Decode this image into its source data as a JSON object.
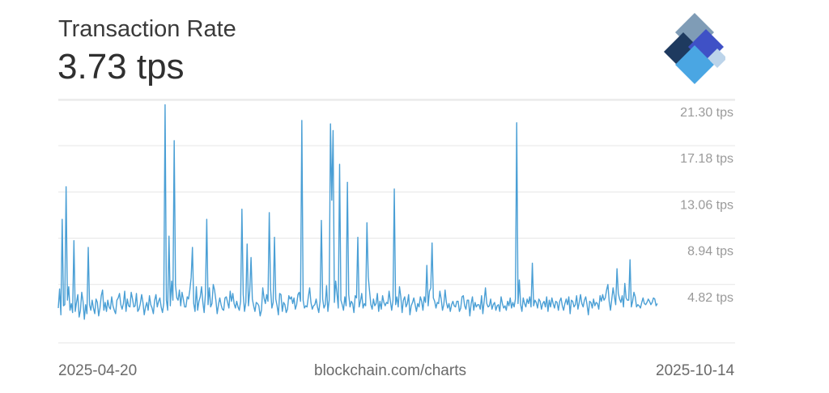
{
  "header": {
    "title": "Transaction Rate",
    "current_value": "3.73 tps"
  },
  "footer": {
    "start_date": "2025-04-20",
    "source": "blockchain.com/charts",
    "end_date": "2025-10-14"
  },
  "logo": {
    "icon": "blockchain-logo-icon",
    "colors": [
      "#1e3a5f",
      "#7f9cb6",
      "#3f51c6",
      "#4aa6e3",
      "#bcd4ea"
    ]
  },
  "colors": {
    "line": "#4a9fd5",
    "grid": "#e6e6e6",
    "tick_text": "#9a9a9a"
  },
  "chart_data": {
    "type": "line",
    "title": "Transaction Rate",
    "x_range": [
      "2025-04-20",
      "2025-10-14"
    ],
    "ylim": [
      0.7,
      22.3
    ],
    "yticks": [
      4.82,
      8.94,
      13.06,
      17.18,
      21.3
    ],
    "ytick_labels": [
      "4.82 tps",
      "8.94 tps",
      "13.06 tps",
      "17.18 tps",
      "21.30 tps"
    ],
    "grid": true,
    "series": [
      {
        "values": [
          3.8,
          5.5,
          3.2,
          11.7,
          4.0,
          4.1,
          14.6,
          4.5,
          5.7,
          3.6,
          4.2,
          3.4,
          9.8,
          3.5,
          4.3,
          5.0,
          3.0,
          3.6,
          5.2,
          4.4,
          2.8,
          4.1,
          3.3,
          9.2,
          4.1,
          3.6,
          4.5,
          3.8,
          3.3,
          4.6,
          4.3,
          3.1,
          3.8,
          4.9,
          5.4,
          3.6,
          4.3,
          3.5,
          4.5,
          3.9,
          3.7,
          4.8,
          4.0,
          3.6,
          3.3,
          4.5,
          4.7,
          5.1,
          4.1,
          3.7,
          4.2,
          5.3,
          3.5,
          4.6,
          4.0,
          3.9,
          5.2,
          4.6,
          3.9,
          4.0,
          5.1,
          3.5,
          3.7,
          4.2,
          5.0,
          4.3,
          3.2,
          3.9,
          4.3,
          3.6,
          4.9,
          4.1,
          3.8,
          3.3,
          4.5,
          5.0,
          3.9,
          4.4,
          4.7,
          3.9,
          3.4,
          4.2,
          21.9,
          4.5,
          3.6,
          10.2,
          4.0,
          6.2,
          4.5,
          18.7,
          5.8,
          4.7,
          4.5,
          5.4,
          4.0,
          5.2,
          4.6,
          3.9,
          3.9,
          4.8,
          4.6,
          5.4,
          6.5,
          9.2,
          4.2,
          3.5,
          5.7,
          3.6,
          4.4,
          4.8,
          5.7,
          4.3,
          3.4,
          5.1,
          11.7,
          4.1,
          5.6,
          3.9,
          4.2,
          5.9,
          5.4,
          4.5,
          3.3,
          4.1,
          4.7,
          4.1,
          3.7,
          3.6,
          4.7,
          4.8,
          4.3,
          3.8,
          5.3,
          4.4,
          5.1,
          4.2,
          3.8,
          4.4,
          3.9,
          3.6,
          4.4,
          12.6,
          5.0,
          3.5,
          4.3,
          9.5,
          4.0,
          5.3,
          8.3,
          4.6,
          4.0,
          3.5,
          4.3,
          4.2,
          4.0,
          3.1,
          3.6,
          5.6,
          4.7,
          4.2,
          5.0,
          4.4,
          12.3,
          5.5,
          3.8,
          4.3,
          10.1,
          4.6,
          4.0,
          3.2,
          5.1,
          5.0,
          3.5,
          4.3,
          4.1,
          3.4,
          3.7,
          4.9,
          4.6,
          4.8,
          4.2,
          4.7,
          3.7,
          4.1,
          5.0,
          5.2,
          4.4,
          20.5,
          4.5,
          3.8,
          4.0,
          3.9,
          4.8,
          5.6,
          4.3,
          3.7,
          4.0,
          4.1,
          4.6,
          3.9,
          3.4,
          4.4,
          11.6,
          4.6,
          3.8,
          4.1,
          5.8,
          3.5,
          4.5,
          20.2,
          13.4,
          19.6,
          4.3,
          6.2,
          5.1,
          3.8,
          16.6,
          4.5,
          4.1,
          3.6,
          4.8,
          4.0,
          15.0,
          5.0,
          3.9,
          4.4,
          4.2,
          3.4,
          4.9,
          4.7,
          10.1,
          3.9,
          4.4,
          5.1,
          3.8,
          4.2,
          4.0,
          11.4,
          6.6,
          5.3,
          4.1,
          3.7,
          4.6,
          4.0,
          4.2,
          5.1,
          3.5,
          4.4,
          3.7,
          4.9,
          4.3,
          4.0,
          4.3,
          4.2,
          5.3,
          4.4,
          3.6,
          4.5,
          14.4,
          4.1,
          4.8,
          3.9,
          5.7,
          4.8,
          3.4,
          4.5,
          4.8,
          3.9,
          4.2,
          5.0,
          3.2,
          4.0,
          4.3,
          4.7,
          4.1,
          3.5,
          4.2,
          3.9,
          4.8,
          4.4,
          3.6,
          4.8,
          4.3,
          7.6,
          4.0,
          5.3,
          5.6,
          9.6,
          4.7,
          4.4,
          3.8,
          4.3,
          4.2,
          5.3,
          4.6,
          3.6,
          4.1,
          5.4,
          4.3,
          3.8,
          4.2,
          3.5,
          4.1,
          4.4,
          4.0,
          3.9,
          4.4,
          4.4,
          3.5,
          3.8,
          4.8,
          4.9,
          4.0,
          3.7,
          4.5,
          4.5,
          3.1,
          4.2,
          4.8,
          3.6,
          4.3,
          3.9,
          4.1,
          4.1,
          3.7,
          4.9,
          3.3,
          4.4,
          5.6,
          4.2,
          3.9,
          4.0,
          4.6,
          3.7,
          4.1,
          4.3,
          3.6,
          4.0,
          4.1,
          3.5,
          4.8,
          4.2,
          3.8,
          4.0,
          3.6,
          4.4,
          4.0,
          4.7,
          3.8,
          4.3,
          3.9,
          4.6,
          20.3,
          4.2,
          6.3,
          4.1,
          3.5,
          4.7,
          4.2,
          3.9,
          4.6,
          4.2,
          4.8,
          3.9,
          7.8,
          4.0,
          4.5,
          4.3,
          3.8,
          4.6,
          4.4,
          3.7,
          4.2,
          4.4,
          3.9,
          4.8,
          3.5,
          4.5,
          3.9,
          4.7,
          4.2,
          3.8,
          4.4,
          4.3,
          3.6,
          4.4,
          4.7,
          4.0,
          3.6,
          4.2,
          4.6,
          4.1,
          4.8,
          3.3,
          4.5,
          4.4,
          3.9,
          4.1,
          4.9,
          3.7,
          4.3,
          5.0,
          4.2,
          3.9,
          4.5,
          4.8,
          4.1,
          3.2,
          4.4,
          4.3,
          3.8,
          4.6,
          4.0,
          4.3,
          4.2,
          3.7,
          4.9,
          4.4,
          5.0,
          4.5,
          4.7,
          5.4,
          5.9,
          4.4,
          3.6,
          4.6,
          5.6,
          4.8,
          4.1,
          7.3,
          5.1,
          4.6,
          4.3,
          4.9,
          3.9,
          6.0,
          4.7,
          4.5,
          4.5,
          8.1,
          3.9,
          4.4,
          5.2,
          4.8,
          3.9,
          4.1,
          4.0,
          3.8,
          4.3,
          4.7,
          4.2,
          4.1,
          4.3,
          4.6,
          4.4,
          4.1,
          4.3,
          4.7,
          4.6,
          4.0,
          4.2
        ]
      }
    ]
  }
}
